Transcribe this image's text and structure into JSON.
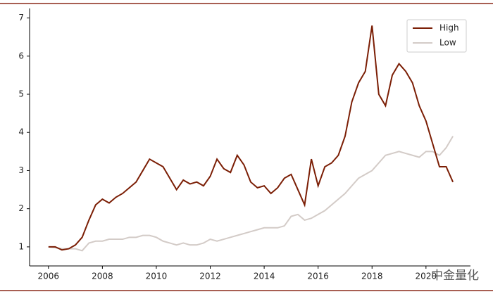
{
  "chart_data": {
    "type": "line",
    "x": [
      2006.0,
      2006.25,
      2006.5,
      2006.75,
      2007.0,
      2007.25,
      2007.5,
      2007.75,
      2008.0,
      2008.25,
      2008.5,
      2008.75,
      2009.0,
      2009.25,
      2009.5,
      2009.75,
      2010.0,
      2010.25,
      2010.5,
      2010.75,
      2011.0,
      2011.25,
      2011.5,
      2011.75,
      2012.0,
      2012.25,
      2012.5,
      2012.75,
      2013.0,
      2013.25,
      2013.5,
      2013.75,
      2014.0,
      2014.25,
      2014.5,
      2014.75,
      2015.0,
      2015.25,
      2015.5,
      2015.75,
      2016.0,
      2016.25,
      2016.5,
      2016.75,
      2017.0,
      2017.25,
      2017.5,
      2017.75,
      2018.0,
      2018.25,
      2018.5,
      2018.75,
      2019.0,
      2019.25,
      2019.5,
      2019.75,
      2020.0,
      2020.25,
      2020.5,
      2020.75,
      2021.0
    ],
    "series": [
      {
        "name": "High",
        "color": "#7b1e05",
        "values": [
          1.0,
          1.0,
          0.92,
          0.95,
          1.05,
          1.25,
          1.7,
          2.1,
          2.25,
          2.15,
          2.3,
          2.4,
          2.55,
          2.7,
          3.0,
          3.3,
          3.2,
          3.1,
          2.8,
          2.5,
          2.75,
          2.65,
          2.7,
          2.6,
          2.85,
          3.3,
          3.05,
          2.95,
          3.4,
          3.15,
          2.7,
          2.55,
          2.6,
          2.4,
          2.55,
          2.8,
          2.9,
          2.5,
          2.1,
          3.3,
          2.6,
          3.1,
          3.2,
          3.4,
          3.9,
          4.8,
          5.3,
          5.6,
          6.8,
          5.0,
          4.7,
          5.5,
          5.8,
          5.6,
          5.3,
          4.7,
          4.3,
          3.7,
          3.1,
          3.1,
          2.7
        ]
      },
      {
        "name": "Low",
        "color": "#d3cbc7",
        "values": [
          1.0,
          0.98,
          0.95,
          0.95,
          0.95,
          0.9,
          1.1,
          1.15,
          1.15,
          1.2,
          1.2,
          1.2,
          1.25,
          1.25,
          1.3,
          1.3,
          1.25,
          1.15,
          1.1,
          1.05,
          1.1,
          1.05,
          1.05,
          1.1,
          1.2,
          1.15,
          1.2,
          1.25,
          1.3,
          1.35,
          1.4,
          1.45,
          1.5,
          1.5,
          1.5,
          1.55,
          1.8,
          1.85,
          1.7,
          1.75,
          1.85,
          1.95,
          2.1,
          2.25,
          2.4,
          2.6,
          2.8,
          2.9,
          3.0,
          3.2,
          3.4,
          3.45,
          3.5,
          3.45,
          3.4,
          3.35,
          3.5,
          3.5,
          3.4,
          3.6,
          3.9
        ]
      }
    ],
    "xlim": [
      2005.3,
      2021.65
    ],
    "xticks": [
      2006,
      2008,
      2010,
      2012,
      2014,
      2016,
      2018,
      2020
    ],
    "ylim": [
      0.5,
      7.25
    ],
    "yticks": [
      1,
      2,
      3,
      4,
      5,
      6,
      7
    ],
    "legend": "upper right",
    "watermark": "中金量化"
  }
}
